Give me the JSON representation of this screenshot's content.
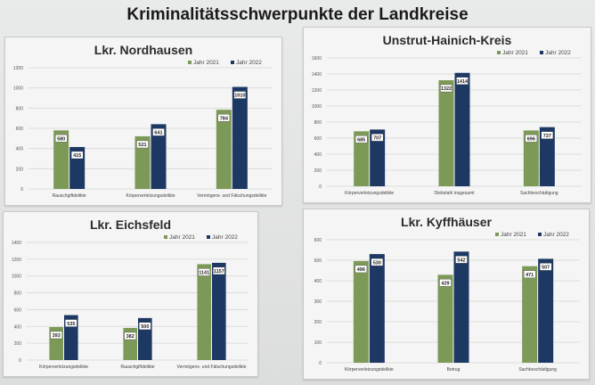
{
  "slide_title": "Kriminalitätsschwerpunkte der Landkreise",
  "colors": {
    "jahr_2021": "#7d9958",
    "jahr_2022": "#1d3863"
  },
  "chart_data": [
    {
      "type": "bar",
      "title": "Lkr. Nordhausen",
      "categories": [
        "Rauschgiftdelikte",
        "Körperverletzungsdelikte",
        "Vermögens- und Fälschungsdelikte"
      ],
      "series": [
        {
          "name": "Jahr 2021",
          "values": [
            580,
            521,
            784
          ]
        },
        {
          "name": "Jahr 2022",
          "values": [
            415,
            641,
            1010
          ]
        }
      ],
      "ylim": [
        0,
        1200
      ],
      "yticks": [
        0,
        200,
        400,
        600,
        800,
        1000,
        1200
      ],
      "grid": true,
      "legend": "top-right"
    },
    {
      "type": "bar",
      "title": "Unstrut-Hainich-Kreis",
      "categories": [
        "Körperverletzungsdelikte",
        "Diebstahl insgesamt",
        "Sachbeschädigung"
      ],
      "series": [
        {
          "name": "Jahr 2021",
          "values": [
            685,
            1322,
            696
          ]
        },
        {
          "name": "Jahr 2022",
          "values": [
            707,
            1414,
            737
          ]
        }
      ],
      "ylim": [
        0,
        1600
      ],
      "yticks": [
        0,
        200,
        400,
        600,
        800,
        1000,
        1200,
        1400,
        1600
      ],
      "grid": true,
      "legend": "top-right"
    },
    {
      "type": "bar",
      "title": "Lkr. Eichsfeld",
      "categories": [
        "Körperverletzungsdelikte",
        "Rauschgiftdelikte",
        "Vermögens- und Fälschungsdelikte"
      ],
      "series": [
        {
          "name": "Jahr 2021",
          "values": [
            393,
            382,
            1141
          ]
        },
        {
          "name": "Jahr 2022",
          "values": [
            535,
            500,
            1157
          ]
        }
      ],
      "ylim": [
        0,
        1400
      ],
      "yticks": [
        0,
        200,
        400,
        600,
        800,
        1000,
        1200,
        1400
      ],
      "grid": true,
      "legend": "top-right"
    },
    {
      "type": "bar",
      "title": "Lkr. Kyffhäuser",
      "categories": [
        "Körperverletzungsdelikte",
        "Betrug",
        "Sachbeschädigung"
      ],
      "series": [
        {
          "name": "Jahr 2021",
          "values": [
            496,
            429,
            471
          ]
        },
        {
          "name": "Jahr 2022",
          "values": [
            530,
            542,
            507
          ]
        }
      ],
      "ylim": [
        0,
        600
      ],
      "yticks": [
        0,
        100,
        200,
        300,
        400,
        500,
        600
      ],
      "grid": true,
      "legend": "top-right"
    }
  ]
}
